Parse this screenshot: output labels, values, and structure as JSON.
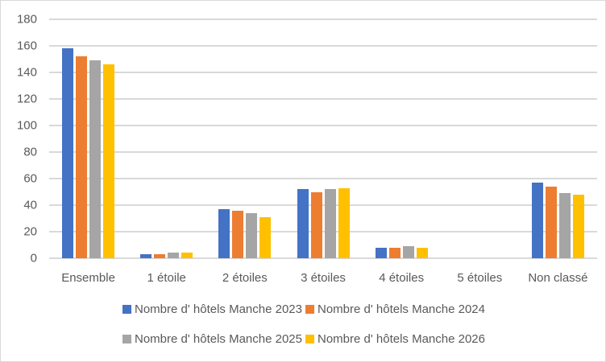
{
  "chart_data": {
    "type": "bar",
    "title": "",
    "xlabel": "",
    "ylabel": "",
    "ylim": [
      0,
      180
    ],
    "yticks": [
      0,
      20,
      40,
      60,
      80,
      100,
      120,
      140,
      160,
      180
    ],
    "grid": true,
    "legend_position": "bottom",
    "categories": [
      "Ensemble",
      "1 étoile",
      "2 étoiles",
      "3 étoiles",
      "4 étoiles",
      "5 étoiles",
      "Non classé"
    ],
    "series": [
      {
        "name": "Nombre d' hôtels Manche 2023",
        "color": "#4472c4",
        "values": [
          158,
          3,
          37,
          52,
          8,
          0,
          57
        ]
      },
      {
        "name": "Nombre d' hôtels Manche 2024",
        "color": "#ed7d31",
        "values": [
          152,
          3,
          36,
          50,
          8,
          0,
          54
        ]
      },
      {
        "name": "Nombre d' hôtels Manche 2025",
        "color": "#a5a5a5",
        "values": [
          149,
          4,
          34,
          52,
          9,
          0,
          49
        ]
      },
      {
        "name": "Nombre d' hôtels Manche 2026",
        "color": "#ffc000",
        "values": [
          146,
          4,
          31,
          53,
          8,
          0,
          48
        ]
      }
    ]
  }
}
